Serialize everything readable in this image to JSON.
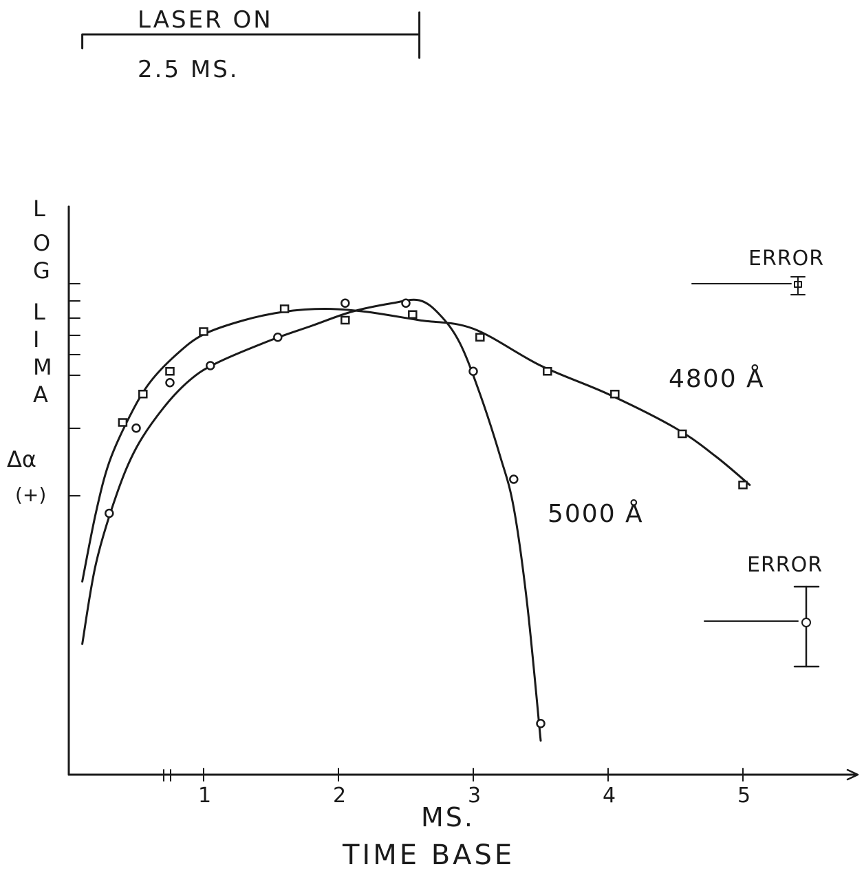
{
  "chart_data": {
    "type": "scatter",
    "xlabel": "TIME BASE",
    "x_unit_label": "MS.",
    "ylabel_letters": [
      "L",
      "O",
      "G",
      "L",
      "I",
      "M",
      "A"
    ],
    "ylabel_sub": [
      "Δα",
      "(+)"
    ],
    "x_ticks": [
      1,
      2,
      3,
      4,
      5
    ],
    "x_tick_labels": [
      "1",
      "2",
      "3",
      "4",
      "5"
    ],
    "xlim": [
      0,
      5.8
    ],
    "y_scale": "log",
    "laser": {
      "label": "LASER ON",
      "duration_label": "2.5 MS.",
      "start": 0.1,
      "end": 2.6
    },
    "series": [
      {
        "name": "4800 Å",
        "marker": "square",
        "points": [
          [
            0.4,
            0.62
          ],
          [
            0.55,
            0.67
          ],
          [
            0.75,
            0.71
          ],
          [
            1.0,
            0.78
          ],
          [
            1.6,
            0.82
          ],
          [
            2.05,
            0.8
          ],
          [
            2.55,
            0.81
          ],
          [
            3.05,
            0.77
          ],
          [
            3.55,
            0.71
          ],
          [
            4.05,
            0.67
          ],
          [
            4.55,
            0.6
          ],
          [
            5.0,
            0.51
          ]
        ],
        "curve": [
          [
            0.1,
            0.34
          ],
          [
            0.2,
            0.46
          ],
          [
            0.3,
            0.55
          ],
          [
            0.45,
            0.63
          ],
          [
            0.6,
            0.69
          ],
          [
            0.8,
            0.74
          ],
          [
            1.0,
            0.775
          ],
          [
            1.3,
            0.8
          ],
          [
            1.6,
            0.815
          ],
          [
            1.9,
            0.82
          ],
          [
            2.2,
            0.815
          ],
          [
            2.6,
            0.8
          ],
          [
            3.0,
            0.785
          ],
          [
            3.5,
            0.72
          ],
          [
            4.0,
            0.67
          ],
          [
            4.5,
            0.61
          ],
          [
            4.8,
            0.56
          ],
          [
            5.05,
            0.51
          ]
        ]
      },
      {
        "name": "5000 Å",
        "marker": "circle",
        "points": [
          [
            0.3,
            0.46
          ],
          [
            0.5,
            0.61
          ],
          [
            0.75,
            0.69
          ],
          [
            1.05,
            0.72
          ],
          [
            1.55,
            0.77
          ],
          [
            2.05,
            0.83
          ],
          [
            2.5,
            0.83
          ],
          [
            3.0,
            0.71
          ],
          [
            3.3,
            0.52
          ],
          [
            3.5,
            0.09
          ]
        ],
        "curve": [
          [
            0.1,
            0.23
          ],
          [
            0.2,
            0.37
          ],
          [
            0.35,
            0.49
          ],
          [
            0.5,
            0.575
          ],
          [
            0.7,
            0.645
          ],
          [
            0.9,
            0.695
          ],
          [
            1.1,
            0.725
          ],
          [
            1.5,
            0.765
          ],
          [
            1.8,
            0.79
          ],
          [
            2.1,
            0.815
          ],
          [
            2.4,
            0.83
          ],
          [
            2.6,
            0.835
          ],
          [
            2.75,
            0.81
          ],
          [
            2.9,
            0.76
          ],
          [
            3.05,
            0.67
          ],
          [
            3.2,
            0.56
          ],
          [
            3.3,
            0.47
          ],
          [
            3.4,
            0.3
          ],
          [
            3.5,
            0.06
          ]
        ]
      }
    ],
    "error_bars": [
      {
        "label": "ERROR",
        "marker": "square",
        "half_height": 0.012
      },
      {
        "label": "ERROR",
        "marker": "circle",
        "half_height": 0.08
      }
    ],
    "grid": false,
    "legend": "inline labels on curves"
  }
}
